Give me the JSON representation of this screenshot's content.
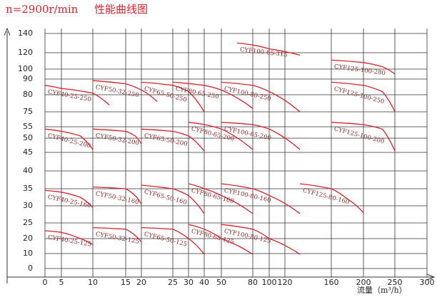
{
  "chart_data": {
    "type": "line",
    "title": "n=2900r/min",
    "subtitle": "性能曲线图",
    "x_label": "流量（m³/h）",
    "xlim": [
      0,
      300
    ],
    "ylim": [
      0,
      140
    ],
    "xticks": [
      0,
      5,
      10,
      15,
      20,
      25,
      30,
      40,
      50,
      80,
      100,
      120,
      160,
      200,
      250,
      300
    ],
    "yticks": [
      140,
      120,
      100,
      90,
      80,
      75,
      55,
      50,
      45,
      40,
      35,
      30,
      25,
      20,
      10,
      0
    ],
    "grid": true,
    "color": "#d9232e",
    "series": [
      {
        "name": "CYF40-25-250",
        "x": [
          0,
          5,
          10,
          12.5
        ],
        "values": [
          86,
          84,
          81,
          77
        ]
      },
      {
        "name": "CYF50-32-250",
        "x": [
          10,
          15,
          20,
          22.5
        ],
        "values": [
          89,
          87,
          83,
          78
        ]
      },
      {
        "name": "CYF65-50-250",
        "x": [
          20,
          25,
          30,
          40
        ],
        "values": [
          88,
          86,
          82,
          75
        ]
      },
      {
        "name": "CYF80-65-250",
        "x": [
          25,
          40,
          50,
          80
        ],
        "values": [
          88,
          86,
          83,
          76
        ]
      },
      {
        "name": "CYF100-80-250",
        "x": [
          50,
          80,
          100,
          133
        ],
        "values": [
          88,
          86,
          82,
          75
        ]
      },
      {
        "name": "CYF125-100-250",
        "x": [
          160,
          200,
          230,
          250
        ],
        "values": [
          88,
          86,
          82,
          75
        ]
      },
      {
        "name": "CYF100-65-315",
        "x": [
          65,
          80,
          100,
          133
        ],
        "values": [
          130,
          128,
          124,
          117
        ]
      },
      {
        "name": "CYF125-100-280",
        "x": [
          160,
          200,
          230,
          250
        ],
        "values": [
          111,
          108,
          103,
          95
        ]
      },
      {
        "name": "CYF40-25-200",
        "x": [
          0,
          5,
          8,
          10
        ],
        "values": [
          54,
          53,
          51,
          46
        ]
      },
      {
        "name": "CYF50-32-200",
        "x": [
          10,
          15,
          18,
          20
        ],
        "values": [
          54,
          53,
          51,
          48
        ]
      },
      {
        "name": "CYF65-50-200",
        "x": [
          20,
          25,
          30,
          40
        ],
        "values": [
          54,
          53,
          51,
          45.5
        ]
      },
      {
        "name": "CYF80-65-200",
        "x": [
          30,
          40,
          50,
          80
        ],
        "values": [
          61,
          58,
          54,
          46
        ]
      },
      {
        "name": "CYF100-65-200",
        "x": [
          50,
          80,
          100,
          133
        ],
        "values": [
          61,
          58,
          54,
          46
        ]
      },
      {
        "name": "CYF125-100-200",
        "x": [
          160,
          200,
          230,
          250
        ],
        "values": [
          61,
          58,
          54,
          45.5
        ]
      },
      {
        "name": "CYF40-25-160",
        "x": [
          0,
          5,
          8,
          10
        ],
        "values": [
          34.5,
          34,
          32.5,
          29.5
        ]
      },
      {
        "name": "CYF50-32-160",
        "x": [
          10,
          15,
          18,
          20
        ],
        "values": [
          35.5,
          35,
          33,
          30.5
        ]
      },
      {
        "name": "CYF65-50-160",
        "x": [
          20,
          25,
          30,
          40
        ],
        "values": [
          36,
          35,
          33,
          27.7
        ]
      },
      {
        "name": "CYF80-65-160",
        "x": [
          30,
          40,
          50,
          80
        ],
        "values": [
          36.4,
          35,
          33,
          27.7
        ]
      },
      {
        "name": "CYF100-80-160",
        "x": [
          50,
          80,
          100,
          133
        ],
        "values": [
          36.4,
          35,
          33,
          27.7
        ]
      },
      {
        "name": "CYF125-80-160",
        "x": [
          133,
          160,
          180,
          200
        ],
        "values": [
          36.4,
          35,
          32,
          28
        ]
      },
      {
        "name": "CYF40-25-125",
        "x": [
          0,
          5,
          8,
          10
        ],
        "values": [
          22.5,
          22,
          20,
          16
        ]
      },
      {
        "name": "CYF50-32-125",
        "x": [
          10,
          15,
          18,
          20
        ],
        "values": [
          23.5,
          23,
          21,
          17.6
        ]
      },
      {
        "name": "CYF65-50-125",
        "x": [
          20,
          25,
          30,
          40
        ],
        "values": [
          23.5,
          23,
          20,
          9.5
        ]
      },
      {
        "name": "CYF80-65-125",
        "x": [
          30,
          40,
          50,
          80
        ],
        "values": [
          24.5,
          23,
          20,
          9.5
        ]
      },
      {
        "name": "CYF100-80-125",
        "x": [
          50,
          80,
          100,
          133
        ],
        "values": [
          24.5,
          23,
          20,
          9.5
        ]
      }
    ]
  }
}
